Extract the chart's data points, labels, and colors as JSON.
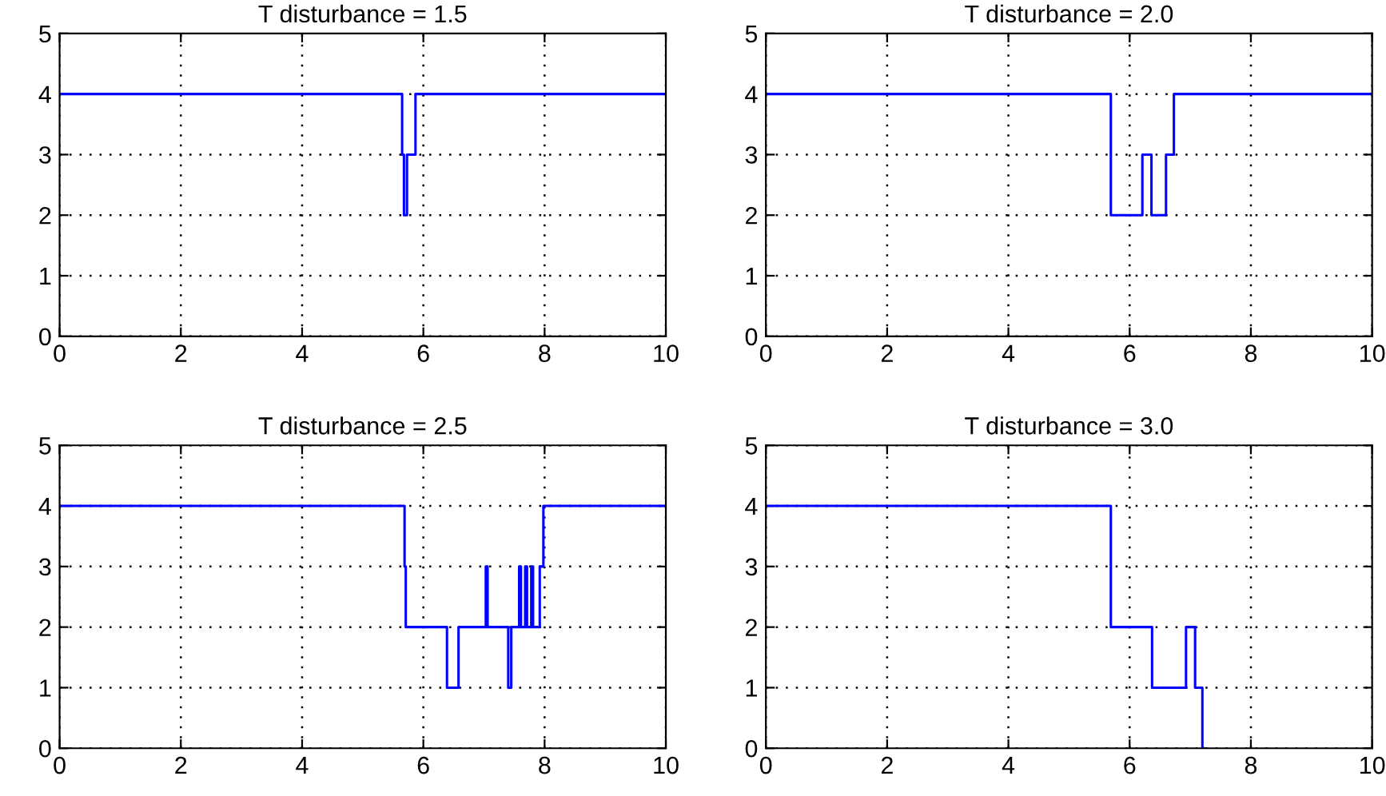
{
  "chart_data": [
    {
      "type": "step",
      "title": "T disturbance = 1.5",
      "xlim": [
        0,
        10
      ],
      "ylim": [
        0,
        5
      ],
      "xticks": [
        0,
        2,
        4,
        6,
        8,
        10
      ],
      "yticks": [
        0,
        1,
        2,
        3,
        4,
        5
      ],
      "grid": true,
      "line_style": "solid",
      "marker": "none",
      "series": [
        {
          "color": "#0000ff",
          "x": [
            0,
            5.65,
            5.68,
            5.73,
            5.87,
            10
          ],
          "values": [
            4,
            3,
            2,
            3,
            4,
            4
          ]
        }
      ]
    },
    {
      "type": "step",
      "title": "T disturbance = 2.0",
      "xlim": [
        0,
        10
      ],
      "ylim": [
        0,
        5
      ],
      "xticks": [
        0,
        2,
        4,
        6,
        8,
        10
      ],
      "yticks": [
        0,
        1,
        2,
        3,
        4,
        5
      ],
      "grid": true,
      "line_style": "solid",
      "marker": "none",
      "series": [
        {
          "color": "#0000ff",
          "x": [
            0,
            5.69,
            6.21,
            6.36,
            6.6,
            6.73,
            10
          ],
          "values": [
            4,
            2,
            3,
            2,
            3,
            4,
            4
          ]
        }
      ]
    },
    {
      "type": "step",
      "title": "T disturbance = 2.5",
      "xlim": [
        0,
        10
      ],
      "ylim": [
        0,
        5
      ],
      "xticks": [
        0,
        2,
        4,
        6,
        8,
        10
      ],
      "yticks": [
        0,
        1,
        2,
        3,
        4,
        5
      ],
      "grid": true,
      "line_style": "solid",
      "marker": "none",
      "series": [
        {
          "color": "#0000ff",
          "x": [
            0,
            5.69,
            5.71,
            6.39,
            6.58,
            7.03,
            7.06,
            7.4,
            7.45,
            7.58,
            7.61,
            7.68,
            7.71,
            7.78,
            7.81,
            7.92,
            7.98,
            10
          ],
          "values": [
            4,
            3,
            2,
            1,
            2,
            3,
            2,
            1,
            2,
            3,
            2,
            3,
            2,
            3,
            2,
            3,
            4,
            4
          ]
        }
      ]
    },
    {
      "type": "step",
      "title": "T disturbance = 3.0",
      "xlim": [
        0,
        10
      ],
      "ylim": [
        0,
        5
      ],
      "xticks": [
        0,
        2,
        4,
        6,
        8,
        10
      ],
      "yticks": [
        0,
        1,
        2,
        3,
        4,
        5
      ],
      "grid": true,
      "line_style": "solid",
      "marker": "none",
      "series": [
        {
          "color": "#0000ff",
          "x": [
            0,
            5.69,
            6.37,
            6.93,
            7.08,
            7.2,
            7.22
          ],
          "values": [
            4,
            2,
            1,
            2,
            1,
            0,
            0
          ]
        }
      ]
    }
  ]
}
